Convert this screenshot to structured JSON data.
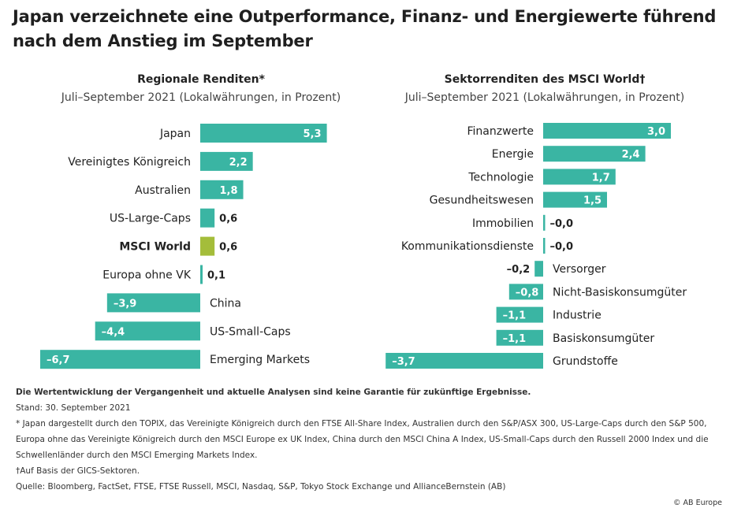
{
  "title": "Japan verzeichnete eine Outperformance, Finanz- und Energiewerte führend nach dem Anstieg im September",
  "colors": {
    "bar": "#3ab5a3",
    "highlight": "#a4bd3a",
    "label_in_bar": "#ffffff",
    "text": "#222222"
  },
  "chart_data": [
    {
      "type": "bar",
      "orientation": "horizontal",
      "title": "Regionale Renditen*",
      "subtitle": "Juli–September 2021 (Lokalwährungen, in Prozent)",
      "categories": [
        "Japan",
        "Vereinigtes Königreich",
        "Australien",
        "US-Large-Caps",
        "MSCI World",
        "Europa ohne VK",
        "China",
        "US-Small-Caps",
        "Emerging Markets"
      ],
      "values": [
        5.3,
        2.2,
        1.8,
        0.6,
        0.6,
        0.1,
        -3.9,
        -4.4,
        -6.7
      ],
      "value_labels": [
        "5,3",
        "2,2",
        "1,8",
        "0,6",
        "0,6",
        "0,1",
        "–3,9",
        "–4,4",
        "–6,7"
      ],
      "highlight_category": "MSCI World"
    },
    {
      "type": "bar",
      "orientation": "horizontal",
      "title": "Sektorrenditen des MSCI World†",
      "subtitle": "Juli–September 2021 (Lokalwährungen, in Prozent)",
      "categories": [
        "Finanzwerte",
        "Energie",
        "Technologie",
        "Gesundheitswesen",
        "Immobilien",
        "Kommunikationsdienste",
        "Versorger",
        "Nicht-Basiskonsumgüter",
        "Industrie",
        "Basiskonsumgüter",
        "Grundstoffe"
      ],
      "values": [
        3.0,
        2.4,
        1.7,
        1.5,
        -0.0,
        -0.0,
        -0.2,
        -0.8,
        -1.1,
        -1.1,
        -3.7
      ],
      "value_labels": [
        "3,0",
        "2,4",
        "1,7",
        "1,5",
        "–0,0",
        "–0,0",
        "–0,2",
        "–0,8",
        "–1,1",
        "–1,1",
        "–3,7"
      ]
    }
  ],
  "footer": {
    "disclaimer": "Die Wertentwicklung der Vergangenheit und aktuelle Analysen sind keine Garantie für zukünftige Ergebnisse.",
    "date": "Stand: 30. September 2021",
    "note1": "* Japan dargestellt durch den TOPIX, das Vereinigte Königreich durch den FTSE All-Share Index, Australien durch den S&P/ASX 300, US-Large-Caps durch den S&P 500, Europa ohne das Vereinigte Königreich durch den MSCI Europe ex UK Index, China durch den MSCI China A Index, US-Small-Caps durch den Russell 2000 Index und die Schwellenländer durch den MSCI Emerging Markets Index.",
    "note2": "†Auf Basis der GICS-Sektoren.",
    "source": "Quelle: Bloomberg, FactSet, FTSE, FTSE Russell, MSCI, Nasdaq, S&P, Tokyo Stock Exchange und AllianceBernstein (AB)"
  },
  "copyright": "© AB Europe"
}
